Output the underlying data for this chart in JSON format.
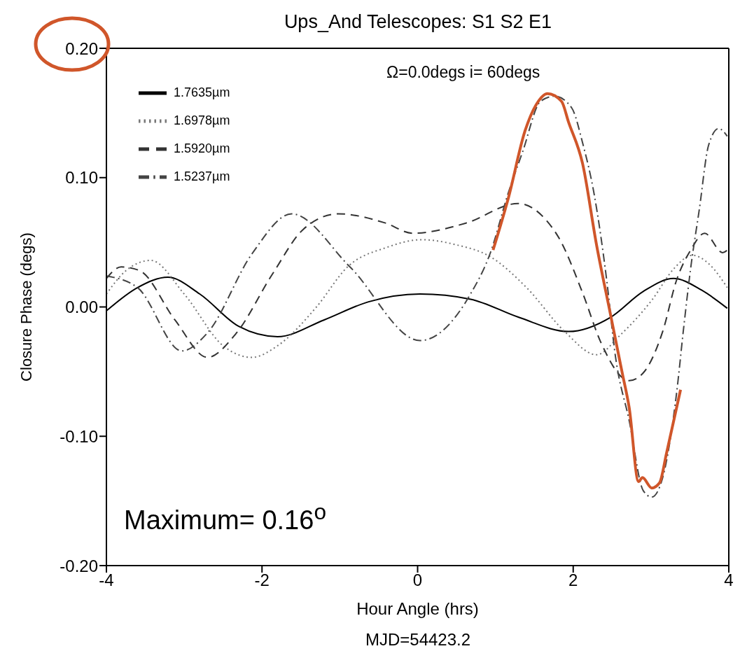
{
  "chart_data": {
    "type": "line",
    "title": "Ups_And   Telescopes: S1 S2 E1",
    "xlabel": "Hour Angle (hrs)",
    "ylabel": "Closure Phase (degs)",
    "annotations": [
      "Ω=0.0degs    i= 60degs",
      "Maximum= 0.16$^{o}$",
      "MJD=54423.2"
    ],
    "xlim": [
      -4,
      4
    ],
    "xticks": [
      -4,
      -2,
      0,
      2,
      4
    ],
    "ylim": [
      -0.2,
      0.2
    ],
    "yticks": [
      {
        "value": -0.2,
        "label": "-0.20"
      },
      {
        "value": -0.1,
        "label": "-0.10"
      },
      {
        "value": 0,
        "label": "0.00"
      },
      {
        "value": 0.1,
        "label": "0.10"
      },
      {
        "value": 0.2,
        "label": "0.20"
      }
    ],
    "grid": false,
    "legend": "top left",
    "marker": "none",
    "series": [
      {
        "name": "1.7635µm",
        "color": "#000000",
        "line_style": "solid",
        "x": [
          -4,
          -3.6,
          -3.21,
          -2.8,
          -2.3,
          -1.8,
          -1.2,
          -0.63,
          0.03,
          0.68,
          1.3,
          1.94,
          2.48,
          2.9,
          3.29,
          3.65,
          3.98
        ],
        "values": [
          -0.003,
          0.015,
          0.023,
          0.01,
          -0.015,
          -0.023,
          -0.01,
          0.004,
          0.01,
          0.006,
          -0.008,
          -0.019,
          -0.008,
          0.012,
          0.022,
          0.013,
          -0.001
        ]
      },
      {
        "name": "1.6978µm",
        "color": "#777777",
        "line_style": "dotted",
        "x": [
          -4,
          -3.75,
          -3.43,
          -3.0,
          -2.5,
          -2.13,
          -1.8,
          -1.3,
          -0.9,
          -0.4,
          0.05,
          0.5,
          0.93,
          1.4,
          1.89,
          2.3,
          2.6,
          3.02,
          3.3,
          3.53,
          3.75,
          3.98
        ],
        "values": [
          0.01,
          0.028,
          0.036,
          0.01,
          -0.03,
          -0.039,
          -0.03,
          0.0,
          0.031,
          0.046,
          0.052,
          0.048,
          0.039,
          0.015,
          -0.019,
          -0.037,
          -0.022,
          0.006,
          0.03,
          0.04,
          0.033,
          0.015
        ]
      },
      {
        "name": "1.5920µm",
        "color": "#333333",
        "line_style": "dashed",
        "x": [
          -4,
          -3.81,
          -3.57,
          -3.12,
          -2.7,
          -2.34,
          -1.86,
          -1.47,
          -1.02,
          -0.42,
          -0.06,
          0.63,
          1.29,
          1.64,
          1.82,
          2.12,
          2.36,
          2.72,
          2.9,
          3.15,
          3.33,
          3.51,
          3.69,
          3.92,
          4
        ],
        "values": [
          0.022,
          0.031,
          0.028,
          -0.01,
          -0.039,
          -0.021,
          0.026,
          0.06,
          0.072,
          0.065,
          0.057,
          0.065,
          0.08,
          0.068,
          0.053,
          0.011,
          -0.028,
          -0.057,
          -0.051,
          -0.019,
          0.021,
          0.044,
          0.057,
          0.042,
          0.045
        ]
      },
      {
        "name": "1.5237µm",
        "color": "#444444",
        "line_style": "dashdot",
        "x": [
          -4,
          -3.6,
          -3.03,
          -2.7,
          -2.13,
          -1.62,
          -0.87,
          0.03,
          0.68,
          0.93,
          1.17,
          1.35,
          1.58,
          1.76,
          1.98,
          2.12,
          2.27,
          2.43,
          2.54,
          2.72,
          2.9,
          3.01,
          3.15,
          3.33,
          3.42,
          3.51,
          3.62,
          3.74,
          3.87,
          3.98
        ],
        "values": [
          0.024,
          0.015,
          -0.034,
          -0.02,
          0.041,
          0.072,
          0.031,
          -0.026,
          0.01,
          0.041,
          0.089,
          0.12,
          0.159,
          0.163,
          0.154,
          0.127,
          0.087,
          0.021,
          -0.037,
          -0.088,
          -0.142,
          -0.147,
          -0.132,
          -0.066,
          -0.016,
          0.03,
          0.075,
          0.125,
          0.138,
          0.132
        ]
      },
      {
        "color": "#d0562a",
        "line_style": "solid",
        "x": [
          0.97,
          1.17,
          1.38,
          1.53,
          1.67,
          1.85,
          1.94,
          2.12,
          2.3,
          2.48,
          2.63,
          2.72,
          2.84,
          2.89,
          3.01,
          3.11,
          3.2,
          3.38
        ],
        "values": [
          0.044,
          0.085,
          0.136,
          0.157,
          0.165,
          0.159,
          0.143,
          0.111,
          0.048,
          -0.006,
          -0.051,
          -0.078,
          -0.135,
          -0.132,
          -0.14,
          -0.136,
          -0.113,
          -0.064
        ]
      }
    ]
  }
}
